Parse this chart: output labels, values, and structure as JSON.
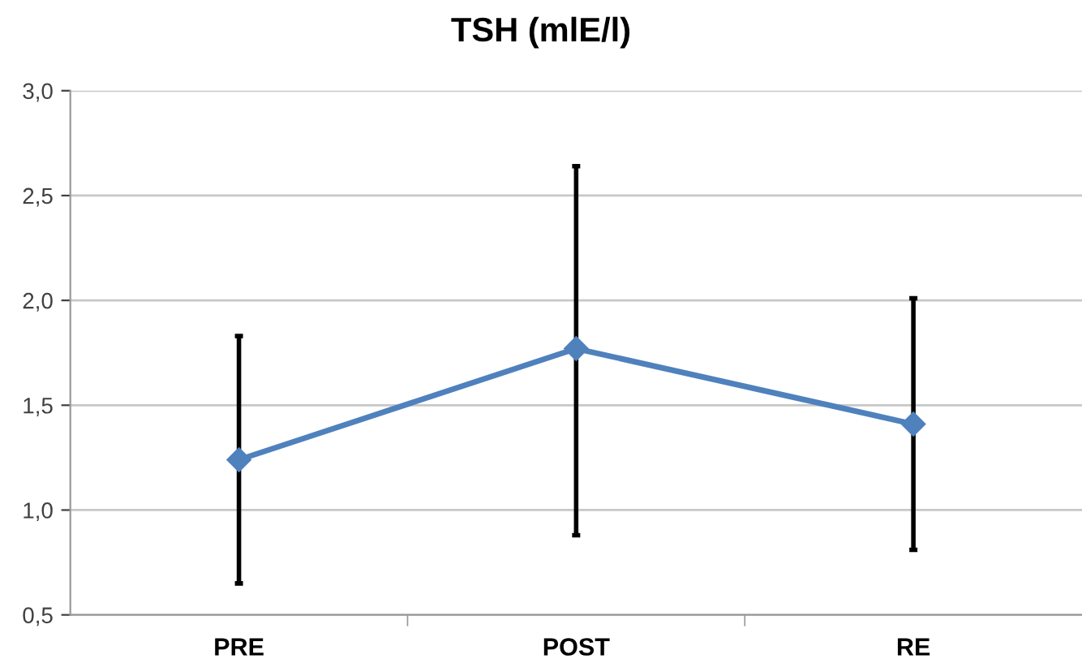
{
  "chart_data": {
    "type": "line",
    "title": "TSH (mlE/l)",
    "categories": [
      "PRE",
      "POST",
      "RE"
    ],
    "series": [
      {
        "color": "#4f81bd",
        "values": [
          1.24,
          1.77,
          1.41
        ],
        "errors": [
          [
            0.65,
            1.83
          ],
          [
            0.88,
            2.64
          ],
          [
            0.81,
            2.01
          ]
        ]
      }
    ],
    "ylim": [
      0.5,
      3.0
    ],
    "yticks": [
      {
        "value": 0.5,
        "label": "0,5"
      },
      {
        "value": 1.0,
        "label": "1,0"
      },
      {
        "value": 1.5,
        "label": "1,5"
      },
      {
        "value": 2.0,
        "label": "2,0"
      },
      {
        "value": 2.5,
        "label": "2,5"
      },
      {
        "value": 3.0,
        "label": "3,0"
      }
    ],
    "grid": "y",
    "marker": "diamond",
    "line_style": "solid",
    "legend": false
  }
}
